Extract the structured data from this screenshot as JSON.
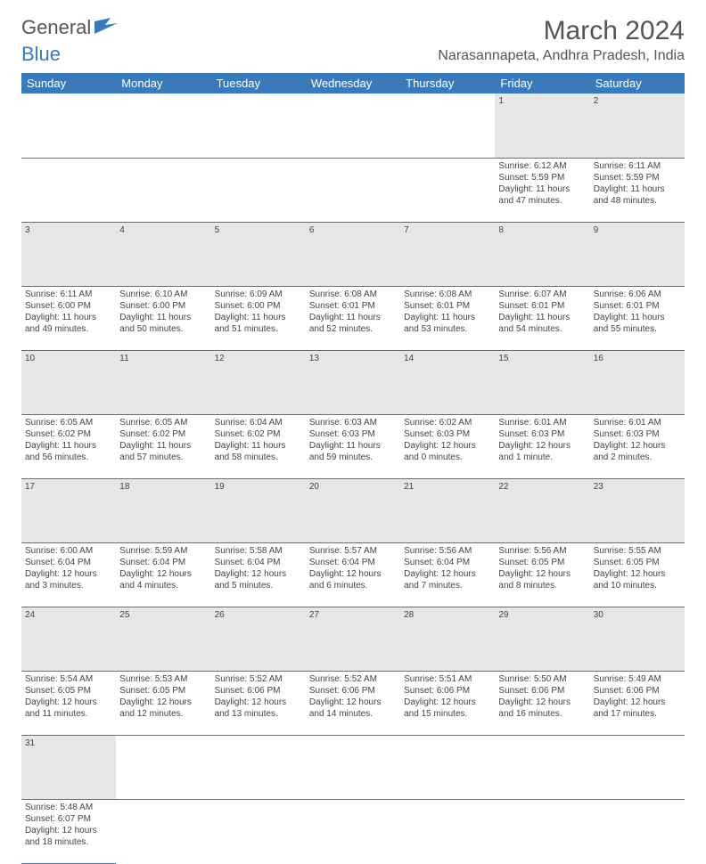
{
  "logo": {
    "text1": "General",
    "text2": "Blue",
    "icon_color": "#3a7ab8"
  },
  "title": "March 2024",
  "location": "Narasannapeta, Andhra Pradesh, India",
  "colors": {
    "header_bg": "#3a7ab8",
    "header_fg": "#ffffff",
    "daynum_bg": "#e6e6e6",
    "text": "#444444"
  },
  "weekdays": [
    "Sunday",
    "Monday",
    "Tuesday",
    "Wednesday",
    "Thursday",
    "Friday",
    "Saturday"
  ],
  "weeks": [
    [
      null,
      null,
      null,
      null,
      null,
      {
        "d": "1",
        "sr": "6:12 AM",
        "ss": "5:59 PM",
        "dl": "11 hours and 47 minutes."
      },
      {
        "d": "2",
        "sr": "6:11 AM",
        "ss": "5:59 PM",
        "dl": "11 hours and 48 minutes."
      }
    ],
    [
      {
        "d": "3",
        "sr": "6:11 AM",
        "ss": "6:00 PM",
        "dl": "11 hours and 49 minutes."
      },
      {
        "d": "4",
        "sr": "6:10 AM",
        "ss": "6:00 PM",
        "dl": "11 hours and 50 minutes."
      },
      {
        "d": "5",
        "sr": "6:09 AM",
        "ss": "6:00 PM",
        "dl": "11 hours and 51 minutes."
      },
      {
        "d": "6",
        "sr": "6:08 AM",
        "ss": "6:01 PM",
        "dl": "11 hours and 52 minutes."
      },
      {
        "d": "7",
        "sr": "6:08 AM",
        "ss": "6:01 PM",
        "dl": "11 hours and 53 minutes."
      },
      {
        "d": "8",
        "sr": "6:07 AM",
        "ss": "6:01 PM",
        "dl": "11 hours and 54 minutes."
      },
      {
        "d": "9",
        "sr": "6:06 AM",
        "ss": "6:01 PM",
        "dl": "11 hours and 55 minutes."
      }
    ],
    [
      {
        "d": "10",
        "sr": "6:05 AM",
        "ss": "6:02 PM",
        "dl": "11 hours and 56 minutes."
      },
      {
        "d": "11",
        "sr": "6:05 AM",
        "ss": "6:02 PM",
        "dl": "11 hours and 57 minutes."
      },
      {
        "d": "12",
        "sr": "6:04 AM",
        "ss": "6:02 PM",
        "dl": "11 hours and 58 minutes."
      },
      {
        "d": "13",
        "sr": "6:03 AM",
        "ss": "6:03 PM",
        "dl": "11 hours and 59 minutes."
      },
      {
        "d": "14",
        "sr": "6:02 AM",
        "ss": "6:03 PM",
        "dl": "12 hours and 0 minutes."
      },
      {
        "d": "15",
        "sr": "6:01 AM",
        "ss": "6:03 PM",
        "dl": "12 hours and 1 minute."
      },
      {
        "d": "16",
        "sr": "6:01 AM",
        "ss": "6:03 PM",
        "dl": "12 hours and 2 minutes."
      }
    ],
    [
      {
        "d": "17",
        "sr": "6:00 AM",
        "ss": "6:04 PM",
        "dl": "12 hours and 3 minutes."
      },
      {
        "d": "18",
        "sr": "5:59 AM",
        "ss": "6:04 PM",
        "dl": "12 hours and 4 minutes."
      },
      {
        "d": "19",
        "sr": "5:58 AM",
        "ss": "6:04 PM",
        "dl": "12 hours and 5 minutes."
      },
      {
        "d": "20",
        "sr": "5:57 AM",
        "ss": "6:04 PM",
        "dl": "12 hours and 6 minutes."
      },
      {
        "d": "21",
        "sr": "5:56 AM",
        "ss": "6:04 PM",
        "dl": "12 hours and 7 minutes."
      },
      {
        "d": "22",
        "sr": "5:56 AM",
        "ss": "6:05 PM",
        "dl": "12 hours and 8 minutes."
      },
      {
        "d": "23",
        "sr": "5:55 AM",
        "ss": "6:05 PM",
        "dl": "12 hours and 10 minutes."
      }
    ],
    [
      {
        "d": "24",
        "sr": "5:54 AM",
        "ss": "6:05 PM",
        "dl": "12 hours and 11 minutes."
      },
      {
        "d": "25",
        "sr": "5:53 AM",
        "ss": "6:05 PM",
        "dl": "12 hours and 12 minutes."
      },
      {
        "d": "26",
        "sr": "5:52 AM",
        "ss": "6:06 PM",
        "dl": "12 hours and 13 minutes."
      },
      {
        "d": "27",
        "sr": "5:52 AM",
        "ss": "6:06 PM",
        "dl": "12 hours and 14 minutes."
      },
      {
        "d": "28",
        "sr": "5:51 AM",
        "ss": "6:06 PM",
        "dl": "12 hours and 15 minutes."
      },
      {
        "d": "29",
        "sr": "5:50 AM",
        "ss": "6:06 PM",
        "dl": "12 hours and 16 minutes."
      },
      {
        "d": "30",
        "sr": "5:49 AM",
        "ss": "6:06 PM",
        "dl": "12 hours and 17 minutes."
      }
    ],
    [
      {
        "d": "31",
        "sr": "5:48 AM",
        "ss": "6:07 PM",
        "dl": "12 hours and 18 minutes."
      },
      null,
      null,
      null,
      null,
      null,
      null
    ]
  ],
  "labels": {
    "sunrise": "Sunrise:",
    "sunset": "Sunset:",
    "daylight": "Daylight:"
  }
}
